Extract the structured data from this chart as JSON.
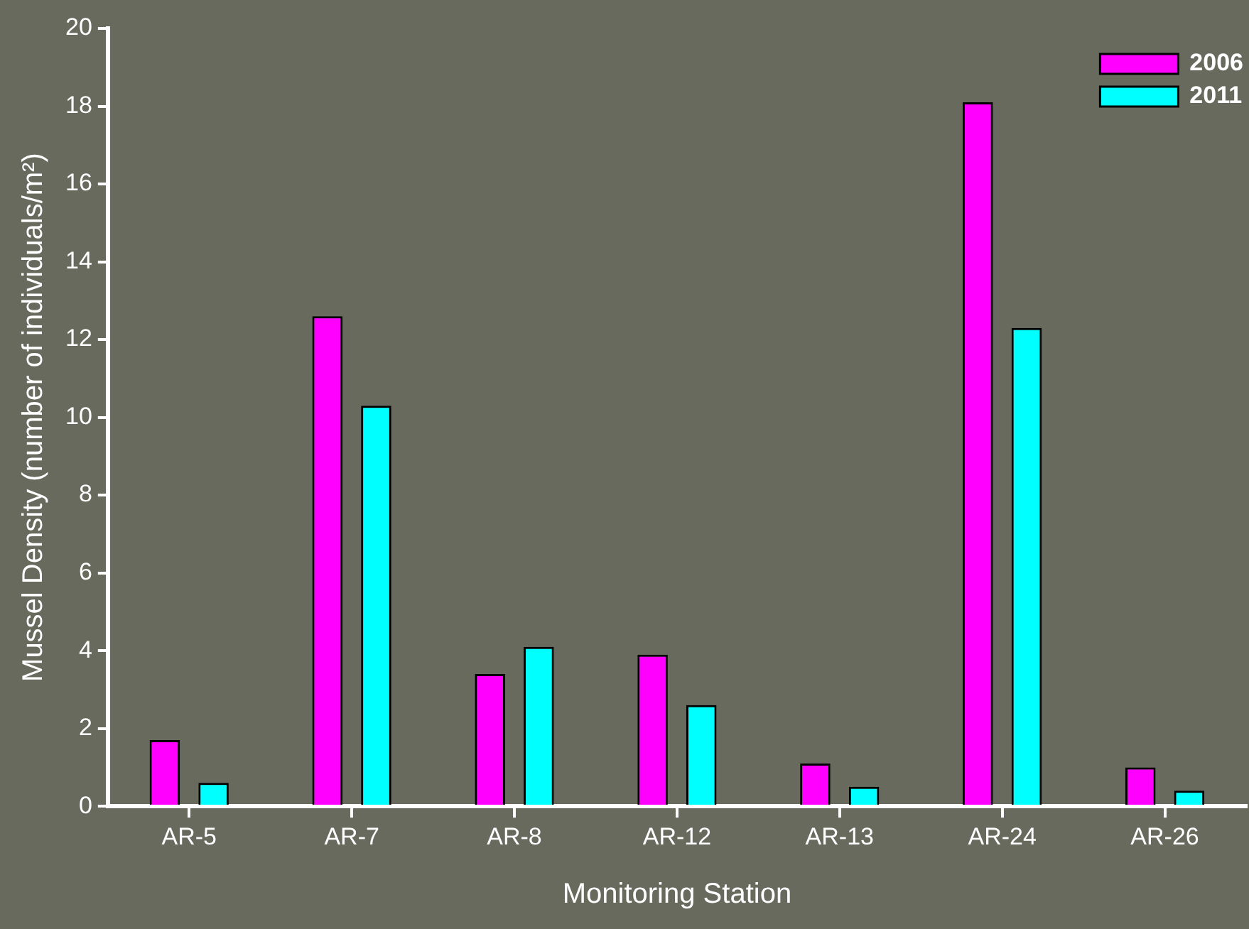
{
  "chart_data": {
    "type": "bar",
    "xlabel": "Monitoring Station",
    "ylabel": "Mussel Density (number of individuals/m²)",
    "categories": [
      "AR-5",
      "AR-7",
      "AR-8",
      "AR-12",
      "AR-13",
      "AR-24",
      "AR-26"
    ],
    "series": [
      {
        "name": "2006",
        "color": "#ff00ff",
        "values": [
          1.7,
          12.6,
          3.4,
          3.9,
          1.1,
          18.1,
          1.0
        ]
      },
      {
        "name": "2011",
        "color": "#00ffff",
        "values": [
          0.6,
          10.3,
          4.1,
          2.6,
          0.5,
          12.3,
          0.4
        ]
      }
    ],
    "ylim": [
      0,
      20
    ],
    "yticks": [
      0,
      2,
      4,
      6,
      8,
      10,
      12,
      14,
      16,
      18,
      20
    ],
    "grid": false,
    "legend": "top right"
  }
}
